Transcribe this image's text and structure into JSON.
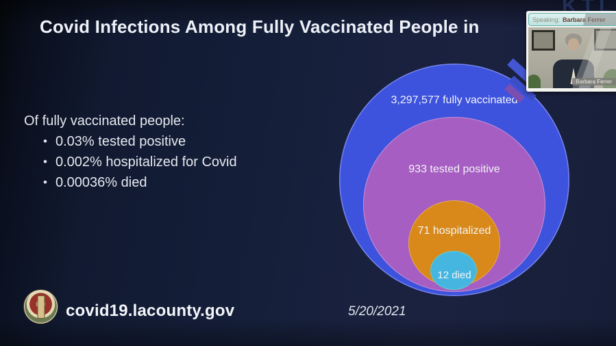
{
  "slide": {
    "title": "Covid Infections Among Fully Vaccinated People in",
    "intro": "Of fully vaccinated people:",
    "bullets": [
      "0.03% tested positive",
      "0.002% hospitalized for Covid",
      "0.00036% died"
    ],
    "footer": {
      "url": "covid19.lacounty.gov",
      "date": "5/20/2021"
    }
  },
  "chart_data": {
    "type": "nested-circles",
    "title": "Covid Infections Among Fully Vaccinated People in",
    "categories": [
      "fully vaccinated",
      "tested positive",
      "hospitalized",
      "died"
    ],
    "values": [
      3297577,
      933,
      71,
      12
    ],
    "labels": [
      "3,297,577 fully vaccinated",
      "933 tested positive",
      "71 hospitalized",
      "12 died"
    ],
    "colors": [
      "#3d52dd",
      "#a75ec2",
      "#d8891a",
      "#45b6e0"
    ],
    "annotations": [
      "0.03% tested positive",
      "0.002% hospitalized for Covid",
      "0.00036% died"
    ],
    "legend_position": "none",
    "grid": false
  },
  "overlay": {
    "speaking_label": "Speaking:",
    "speaker_name": "Barbara Ferrer",
    "name_tag": "Barbara Ferrer"
  },
  "watermark": {
    "station_text": "KTL"
  }
}
